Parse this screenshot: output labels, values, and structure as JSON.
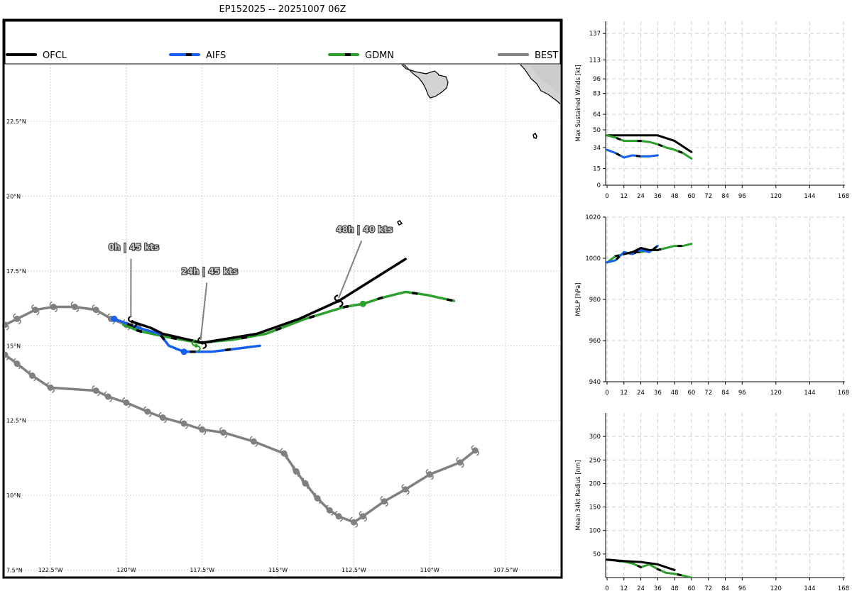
{
  "title": "EP152025 -- 20251007 06Z",
  "colors": {
    "OFCL": "#000000",
    "AIFS": "#1560f0",
    "GDMN": "#2ca02c",
    "BEST": "#808080",
    "land": "#d3d3d3"
  },
  "chart_data": [
    {
      "type": "line",
      "name": "track-map",
      "legend": [
        "OFCL",
        "AIFS",
        "GDMN",
        "BEST"
      ],
      "xlabels": [
        "122.5°W",
        "120°W",
        "117.5°W",
        "115°W",
        "112.5°W",
        "110°W",
        "107.5°W"
      ],
      "xvals": [
        -122.5,
        -120,
        -117.5,
        -115,
        -112.5,
        -110,
        -107.5
      ],
      "ylabels": [
        "7.5°N",
        "10°N",
        "12.5°N",
        "15°N",
        "17.5°N",
        "20°N",
        "22.5°N"
      ],
      "yvals": [
        7.5,
        10,
        12.5,
        15,
        17.5,
        20,
        22.5
      ],
      "xlim": [
        -124,
        -105.7
      ],
      "ylim": [
        7.3,
        24.4
      ],
      "tracks": {
        "OFCL": [
          [
            -119.8,
            15.8
          ],
          [
            -119.2,
            15.6
          ],
          [
            -118.8,
            15.4
          ],
          [
            -117.5,
            15.1
          ],
          [
            -115.7,
            15.4
          ],
          [
            -114.3,
            15.9
          ],
          [
            -113.0,
            16.5
          ],
          [
            -111.9,
            17.2
          ],
          [
            -110.8,
            17.9
          ]
        ],
        "AIFS": [
          [
            -120.4,
            15.9
          ],
          [
            -119.6,
            15.6
          ],
          [
            -118.9,
            15.4
          ],
          [
            -118.6,
            15.0
          ],
          [
            -118.1,
            14.8
          ],
          [
            -117.2,
            14.8
          ],
          [
            -116.4,
            14.9
          ],
          [
            -115.6,
            15.0
          ]
        ],
        "GDMN": [
          [
            -120.1,
            15.7
          ],
          [
            -119.6,
            15.5
          ],
          [
            -118.7,
            15.3
          ],
          [
            -117.6,
            15.1
          ],
          [
            -116.5,
            15.2
          ],
          [
            -115.4,
            15.4
          ],
          [
            -114.1,
            15.9
          ],
          [
            -112.8,
            16.3
          ],
          [
            -112.2,
            16.4
          ],
          [
            -111.6,
            16.6
          ],
          [
            -110.8,
            16.8
          ],
          [
            -110.1,
            16.7
          ],
          [
            -109.2,
            16.5
          ]
        ],
        "BEST_A": [
          [
            -124.0,
            15.7
          ],
          [
            -123.6,
            15.9
          ],
          [
            -123.0,
            16.2
          ],
          [
            -122.4,
            16.3
          ],
          [
            -121.7,
            16.3
          ],
          [
            -121.0,
            16.2
          ],
          [
            -120.5,
            15.9
          ],
          [
            -120.0,
            15.7
          ],
          [
            -119.6,
            15.6
          ]
        ],
        "BEST_B": [
          [
            -124.0,
            14.7
          ],
          [
            -123.6,
            14.4
          ],
          [
            -123.1,
            14.0
          ],
          [
            -122.5,
            13.6
          ],
          [
            -121.0,
            13.5
          ],
          [
            -120.6,
            13.3
          ],
          [
            -120.0,
            13.1
          ],
          [
            -119.3,
            12.8
          ],
          [
            -118.8,
            12.6
          ],
          [
            -118.1,
            12.4
          ],
          [
            -117.5,
            12.2
          ],
          [
            -116.8,
            12.1
          ],
          [
            -115.8,
            11.8
          ],
          [
            -114.8,
            11.4
          ],
          [
            -114.4,
            10.8
          ],
          [
            -114.1,
            10.4
          ],
          [
            -113.7,
            9.9
          ],
          [
            -113.3,
            9.5
          ],
          [
            -113.0,
            9.3
          ],
          [
            -112.5,
            9.1
          ],
          [
            -112.2,
            9.3
          ],
          [
            -111.5,
            9.8
          ],
          [
            -110.8,
            10.2
          ],
          [
            -110.0,
            10.7
          ],
          [
            -109.0,
            11.1
          ],
          [
            -108.5,
            11.5
          ]
        ]
      },
      "dot_points": {
        "AIFS": [
          [
            -120.4,
            15.9
          ],
          [
            -118.1,
            14.8
          ]
        ],
        "GDMN": [
          [
            -112.2,
            16.4
          ]
        ]
      },
      "storm_points": {
        "OFCL": [
          [
            -119.8,
            15.8
          ],
          [
            -117.5,
            15.1
          ],
          [
            -113.0,
            16.5
          ]
        ],
        "GDMN": [
          [
            -117.7,
            15.0
          ]
        ]
      },
      "annotations": [
        {
          "text": "0h | 45 kts",
          "lon": -119.85,
          "lat": 15.95,
          "tx": -119.8,
          "ty": 18.1
        },
        {
          "text": "24h | 45 kts",
          "lon": -117.55,
          "lat": 15.2,
          "tx": -117.3,
          "ty": 17.3
        },
        {
          "text": "48h | 40 kts",
          "lon": -113.0,
          "lat": 16.6,
          "tx": -112.2,
          "ty": 18.7
        }
      ]
    },
    {
      "type": "line",
      "name": "max-wind",
      "ylabel": "Max Sustained Winds [kt]",
      "xticks": [
        0,
        12,
        24,
        36,
        48,
        60,
        72,
        84,
        96,
        120,
        144,
        168
      ],
      "yticks": [
        0,
        15,
        34,
        50,
        64,
        83,
        96,
        113,
        137
      ],
      "xlim": [
        -1,
        169
      ],
      "ylim": [
        0,
        148
      ],
      "series": [
        {
          "name": "OFCL",
          "x": [
            0,
            12,
            24,
            36,
            48,
            60
          ],
          "values": [
            45,
            45,
            45,
            45,
            40,
            30
          ]
        },
        {
          "name": "GDMN",
          "x": [
            0,
            6,
            12,
            18,
            24,
            30,
            36,
            42,
            48,
            54,
            60
          ],
          "values": [
            45,
            43,
            40,
            40,
            40,
            39,
            37,
            34,
            32,
            29,
            24
          ]
        },
        {
          "name": "AIFS",
          "x": [
            0,
            6,
            12,
            18,
            24,
            30,
            36
          ],
          "values": [
            32,
            29,
            25,
            27,
            26,
            26,
            27
          ]
        }
      ]
    },
    {
      "type": "line",
      "name": "mslp",
      "ylabel": "MSLP [hPa]",
      "xticks": [
        0,
        12,
        24,
        36,
        48,
        60,
        72,
        84,
        96,
        120,
        144,
        168
      ],
      "yticks": [
        940,
        960,
        980,
        1000,
        1020
      ],
      "xlim": [
        -1,
        169
      ],
      "ylim": [
        940,
        1020
      ],
      "series": [
        {
          "name": "GDMN",
          "x": [
            0,
            6,
            12,
            18,
            24,
            30,
            36,
            42,
            48,
            54,
            60
          ],
          "values": [
            998,
            1001,
            1002,
            1003,
            1003,
            1004,
            1004,
            1005,
            1006,
            1006,
            1007
          ]
        },
        {
          "name": "AIFS",
          "x": [
            0,
            6,
            12,
            18,
            24,
            30,
            36
          ],
          "values": [
            998,
            999,
            1003,
            1002,
            1004,
            1003,
            1006
          ]
        },
        {
          "name": "OFCL",
          "x": [
            12,
            18,
            24,
            30,
            36
          ],
          "values": [
            1002,
            1003,
            1005,
            1004,
            1004
          ]
        }
      ]
    },
    {
      "type": "line",
      "name": "r34",
      "ylabel": "Mean 34kt Radius [nm]",
      "xticks": [
        0,
        12,
        24,
        36,
        48,
        60,
        72,
        84,
        96,
        120,
        144,
        168
      ],
      "yticks": [
        50,
        100,
        150,
        200,
        250,
        300
      ],
      "xlim": [
        -1,
        169
      ],
      "ylim": [
        0,
        350
      ],
      "series": [
        {
          "name": "GDMN",
          "x": [
            0,
            6,
            12,
            18,
            24,
            30,
            36,
            42,
            48,
            54,
            60
          ],
          "values": [
            38,
            36,
            34,
            30,
            22,
            28,
            18,
            10,
            8,
            4,
            0
          ]
        },
        {
          "name": "OFCL",
          "x": [
            0,
            12,
            24,
            36,
            42,
            48
          ],
          "values": [
            38,
            35,
            33,
            28,
            22,
            16
          ]
        }
      ]
    }
  ]
}
